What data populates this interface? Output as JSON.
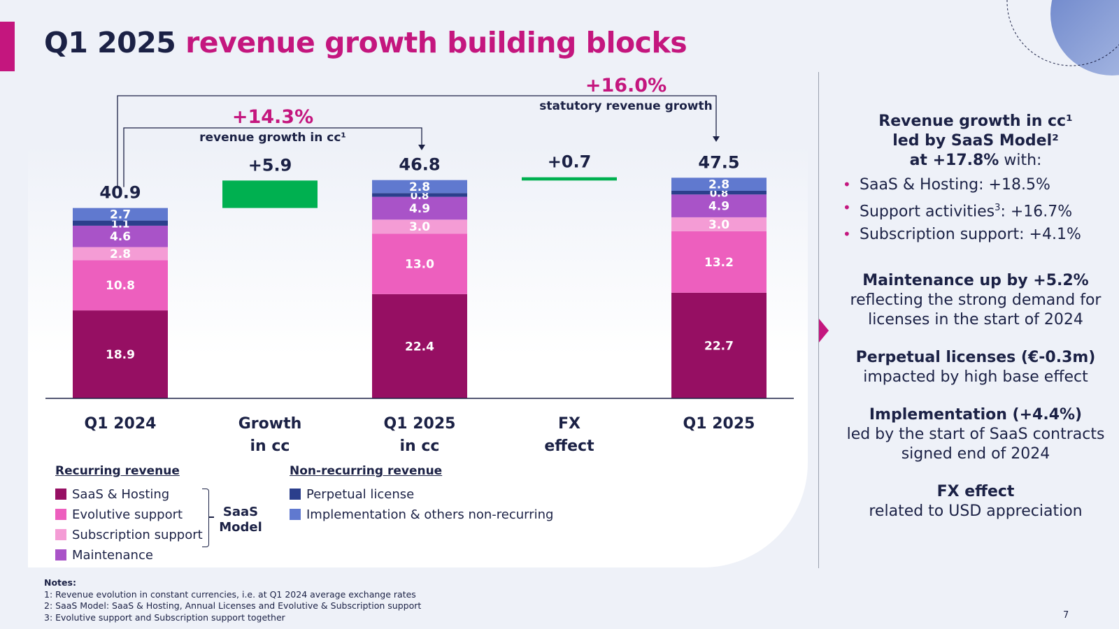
{
  "slide": {
    "title_plain": "Q1 2025",
    "title_accent": "revenue growth building blocks",
    "page_number": "7"
  },
  "colors": {
    "accent": "#c4167e",
    "navy": "#1b2145",
    "growth_green": "#00b050"
  },
  "chart_data": {
    "type": "bar",
    "subtype": "stacked-waterfall",
    "categories": [
      "Q1 2024",
      "Growth in cc",
      "Q1 2025 in cc",
      "FX effect",
      "Q1 2025"
    ],
    "category_lines": [
      [
        "Q1 2024"
      ],
      [
        "Growth",
        "in cc"
      ],
      [
        "Q1 2025",
        "in cc"
      ],
      [
        "FX",
        "effect"
      ],
      [
        "Q1 2025"
      ]
    ],
    "series": [
      {
        "name": "SaaS & Hosting",
        "color": "#960f63",
        "values": [
          18.9,
          null,
          22.4,
          null,
          22.7
        ],
        "labels": [
          "18.9",
          null,
          "22.4",
          null,
          "22.7"
        ]
      },
      {
        "name": "Evolutive support",
        "color": "#ed5fbe",
        "values": [
          10.8,
          null,
          13.0,
          null,
          13.2
        ],
        "labels": [
          "10.8",
          null,
          "13.0",
          null,
          "13.2"
        ]
      },
      {
        "name": "Subscription support",
        "color": "#f49cd5",
        "values": [
          2.8,
          null,
          3.0,
          null,
          3.0
        ],
        "labels": [
          "2.8",
          null,
          "3.0",
          null,
          "3.0"
        ]
      },
      {
        "name": "Maintenance",
        "color": "#a953c8",
        "values": [
          4.6,
          null,
          4.9,
          null,
          4.9
        ],
        "labels": [
          "4.6",
          null,
          "4.9",
          null,
          "4.9"
        ]
      },
      {
        "name": "Perpetual license",
        "color": "#2b3f8c",
        "values": [
          1.1,
          null,
          0.8,
          null,
          0.8
        ],
        "labels": [
          "1.1",
          null,
          "0.8",
          null,
          "0.8"
        ]
      },
      {
        "name": "Implementation & others non-recurring",
        "color": "#6079cf",
        "values": [
          2.7,
          null,
          2.8,
          null,
          2.8
        ],
        "labels": [
          "2.7",
          null,
          "2.8",
          null,
          "2.8"
        ]
      }
    ],
    "totals": [
      40.9,
      5.9,
      46.8,
      0.7,
      47.5
    ],
    "total_labels": [
      "40.9",
      "+5.9",
      "46.8",
      "+0.7",
      "47.5"
    ],
    "bridge": [
      {
        "category_index": 1,
        "base": 40.9,
        "value": 5.9,
        "color": "#00b050"
      },
      {
        "category_index": 3,
        "base": 46.8,
        "value": 0.7,
        "color": "#00b050"
      }
    ],
    "annotations": [
      {
        "from": 0,
        "to": 2,
        "value": "+14.3%",
        "text": "revenue growth in cc¹"
      },
      {
        "from": 0,
        "to": 4,
        "value": "+16.0%",
        "text": "statutory revenue growth"
      }
    ],
    "ylim": [
      0,
      50
    ],
    "title": "",
    "xlabel": "",
    "ylabel": "",
    "grid": false
  },
  "legend": {
    "recurring_title": "Recurring revenue",
    "nonrecurring_title": "Non-recurring revenue",
    "recurring_items": [
      {
        "label": "SaaS & Hosting",
        "color": "#960f63"
      },
      {
        "label": "Evolutive support",
        "color": "#ed5fbe"
      },
      {
        "label": "Subscription support",
        "color": "#f49cd5"
      },
      {
        "label": "Maintenance",
        "color": "#a953c8"
      }
    ],
    "nonrecurring_items": [
      {
        "label": "Perpetual license",
        "color": "#2b3f8c"
      },
      {
        "label": "Implementation & others non-recurring",
        "color": "#6079cf"
      }
    ],
    "saas_model_line1": "SaaS",
    "saas_model_line2": "Model"
  },
  "right_panel": {
    "b1_line1": "Revenue growth in cc¹",
    "b1_line2": "led by SaaS Model²",
    "b1_line3_bold": "at +17.8%",
    "b1_line3_rest": " with:",
    "bullets": [
      {
        "pre": "SaaS & Hosting: +18.5%",
        "sup": "",
        "post": ""
      },
      {
        "pre": "Support activities",
        "sup": "3",
        "post": ": +16.7%"
      },
      {
        "pre": "Subscription support: +4.1%",
        "sup": "",
        "post": ""
      }
    ],
    "b2_title": "Maintenance up by +5.2%",
    "b2_line1": "reflecting the strong demand for",
    "b2_line2": "licenses in the start of 2024",
    "b3_title": "Perpetual licenses (€-0.3m)",
    "b3_line1": "impacted by high base effect",
    "b4_title": "Implementation (+4.4%)",
    "b4_line1": "led by the start of SaaS contracts",
    "b4_line2": "signed end of 2024",
    "b5_title": "FX effect",
    "b5_line1": "related to USD appreciation"
  },
  "notes": {
    "title": "Notes:",
    "lines": [
      "1: Revenue evolution in constant currencies, i.e. at Q1 2024 average exchange rates",
      "2: SaaS Model: SaaS & Hosting, Annual Licenses and Evolutive & Subscription support",
      "3: Evolutive support and Subscription support together"
    ]
  }
}
